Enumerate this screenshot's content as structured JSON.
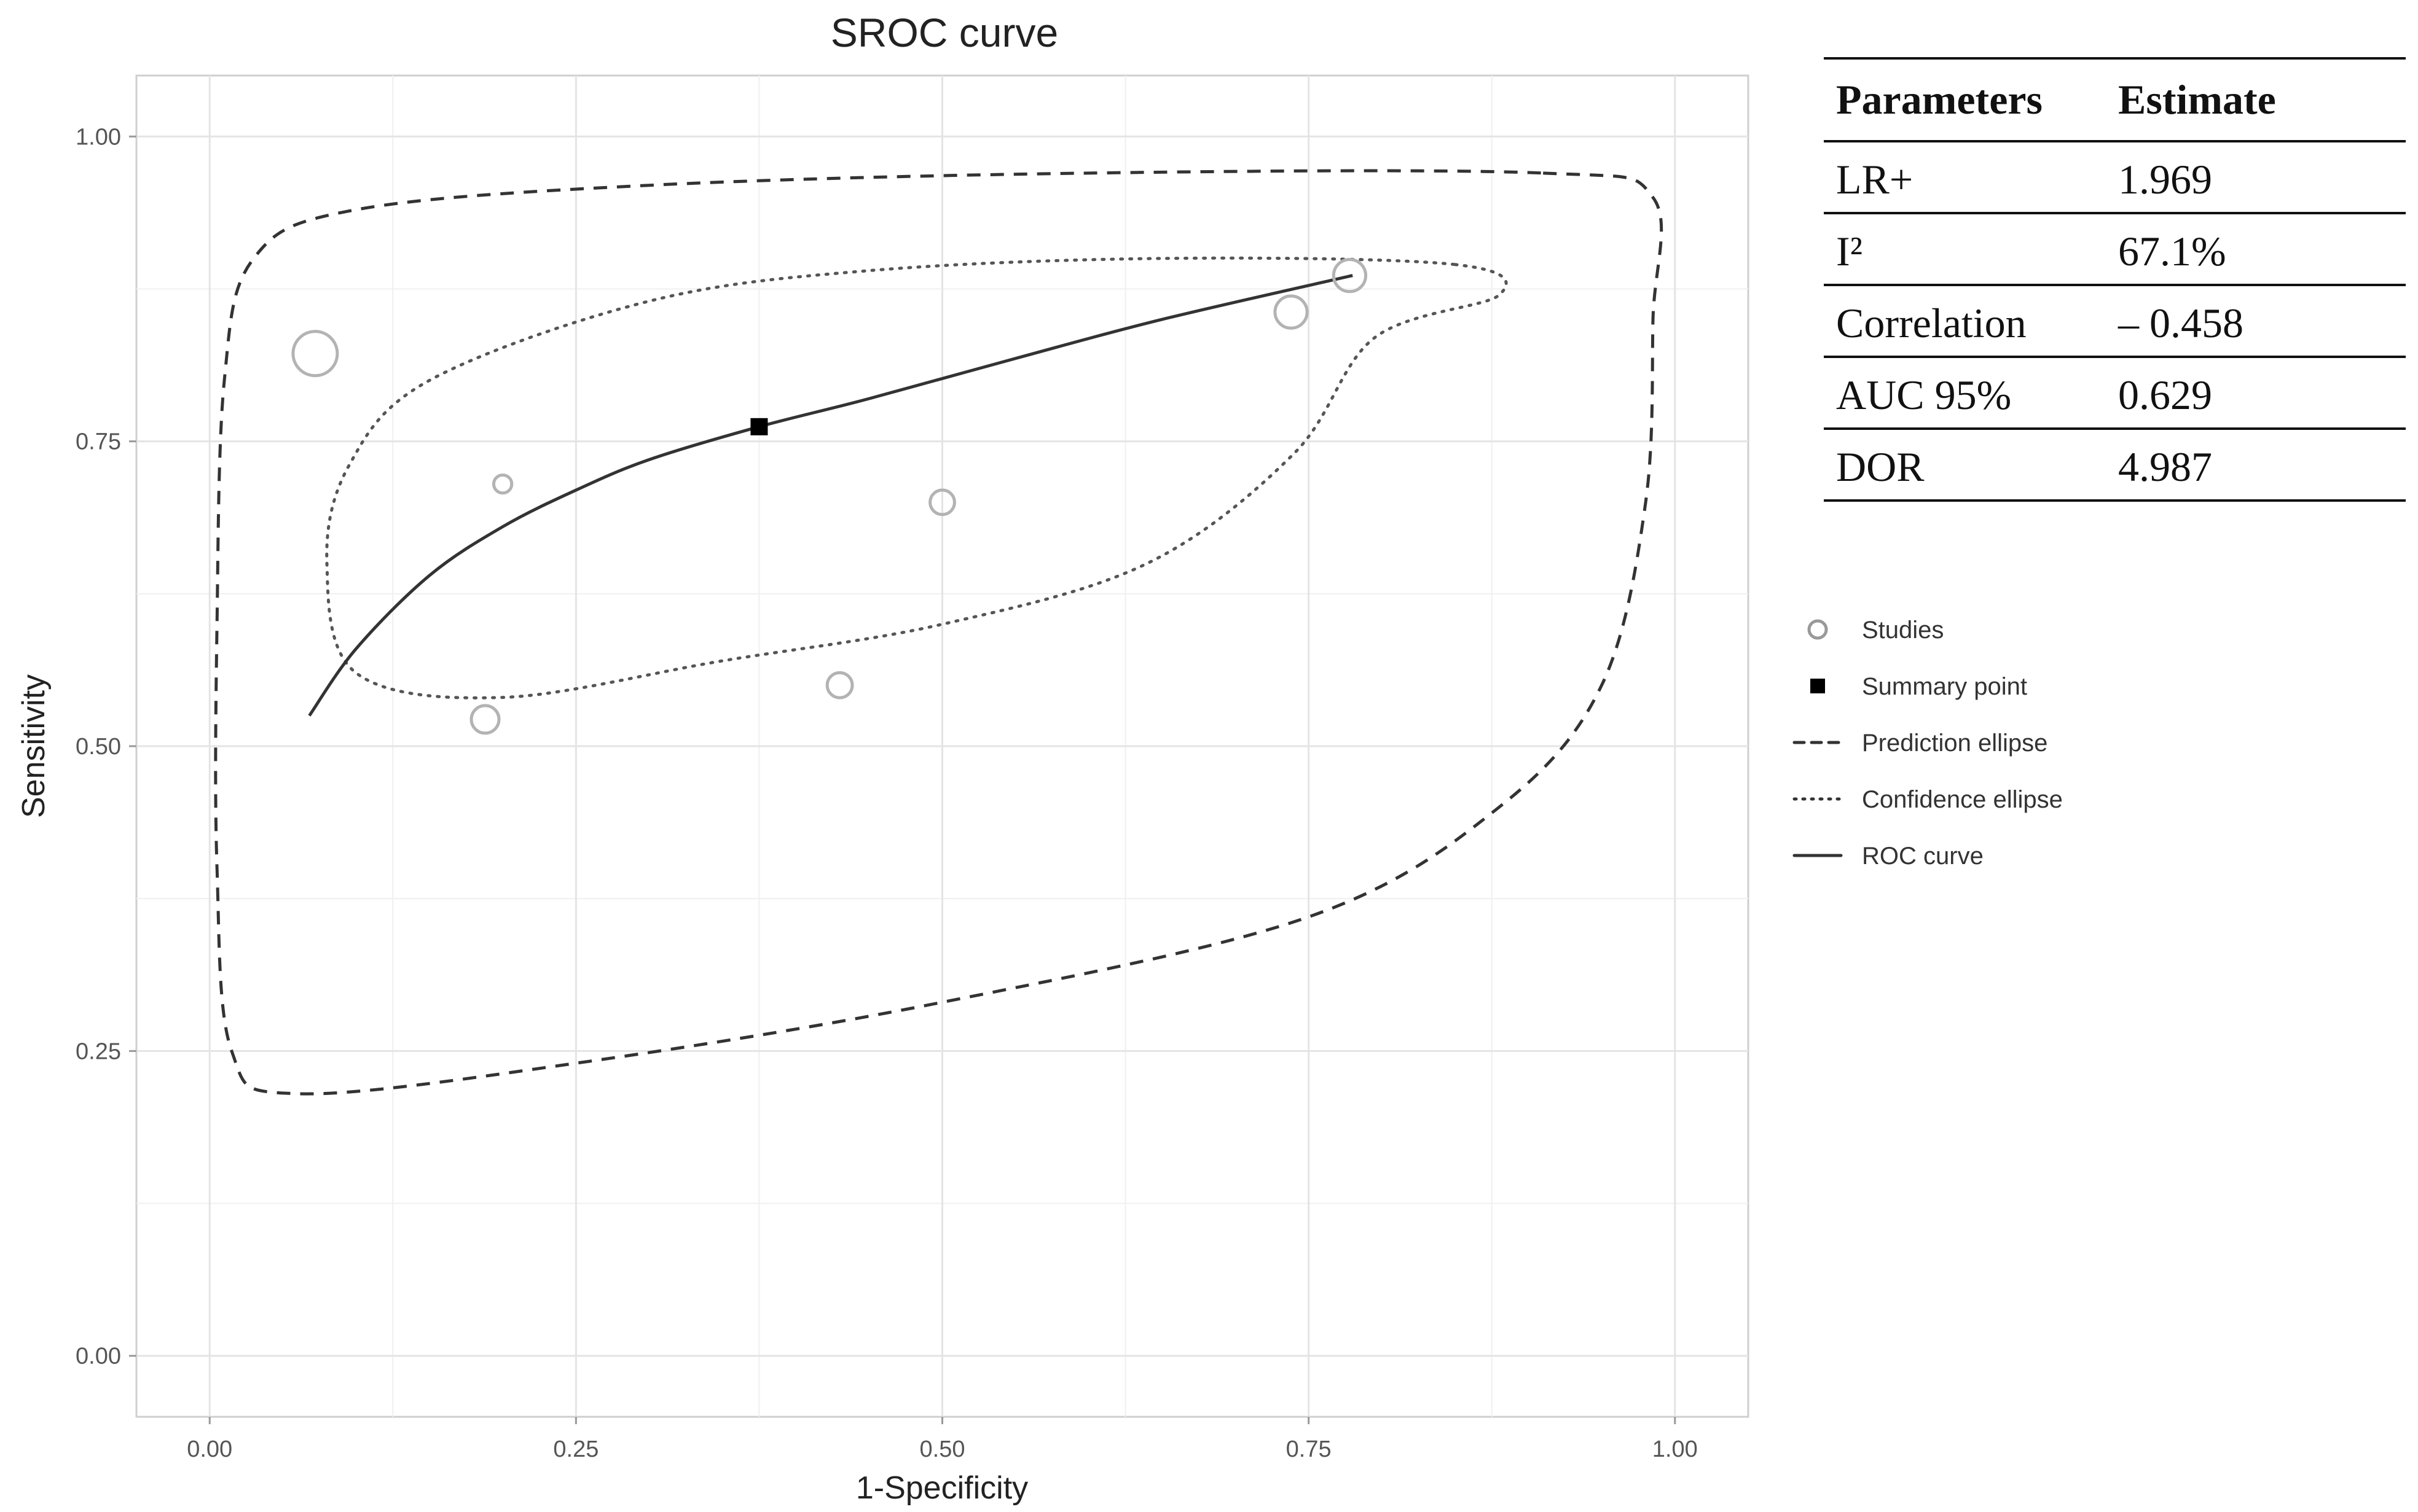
{
  "chart_data": {
    "type": "scatter",
    "title": "SROC curve",
    "xlabel": "1-Specificity",
    "ylabel": "Sensitivity",
    "xlim": [
      -0.05,
      1.05
    ],
    "ylim": [
      -0.05,
      1.05
    ],
    "x_ticks": [
      "0.00",
      "0.25",
      "0.50",
      "0.75",
      "1.00"
    ],
    "y_ticks": [
      "0.00",
      "0.25",
      "0.50",
      "0.75",
      "1.00"
    ],
    "grid": true,
    "studies": [
      {
        "x": 0.072,
        "y": 0.822,
        "weight": 1.0
      },
      {
        "x": 0.2,
        "y": 0.715,
        "weight": 0.18
      },
      {
        "x": 0.188,
        "y": 0.522,
        "weight": 0.48
      },
      {
        "x": 0.43,
        "y": 0.55,
        "weight": 0.4
      },
      {
        "x": 0.5,
        "y": 0.7,
        "weight": 0.38
      },
      {
        "x": 0.738,
        "y": 0.856,
        "weight": 0.62
      },
      {
        "x": 0.778,
        "y": 0.886,
        "weight": 0.62
      }
    ],
    "summary_point": {
      "x": 0.375,
      "y": 0.762
    },
    "roc_curve": [
      {
        "x": 0.068,
        "y": 0.525
      },
      {
        "x": 0.1,
        "y": 0.58
      },
      {
        "x": 0.15,
        "y": 0.64
      },
      {
        "x": 0.2,
        "y": 0.68
      },
      {
        "x": 0.25,
        "y": 0.71
      },
      {
        "x": 0.3,
        "y": 0.735
      },
      {
        "x": 0.375,
        "y": 0.762
      },
      {
        "x": 0.45,
        "y": 0.785
      },
      {
        "x": 0.55,
        "y": 0.818
      },
      {
        "x": 0.65,
        "y": 0.85
      },
      {
        "x": 0.78,
        "y": 0.886
      }
    ],
    "confidence_ellipse": [
      {
        "x": 0.85,
        "y": 0.895
      },
      {
        "x": 0.88,
        "y": 0.87
      },
      {
        "x": 0.795,
        "y": 0.835
      },
      {
        "x": 0.74,
        "y": 0.74
      },
      {
        "x": 0.64,
        "y": 0.65
      },
      {
        "x": 0.5,
        "y": 0.6
      },
      {
        "x": 0.35,
        "y": 0.57
      },
      {
        "x": 0.2,
        "y": 0.54
      },
      {
        "x": 0.1,
        "y": 0.56
      },
      {
        "x": 0.08,
        "y": 0.65
      },
      {
        "x": 0.095,
        "y": 0.73
      },
      {
        "x": 0.15,
        "y": 0.8
      },
      {
        "x": 0.3,
        "y": 0.865
      },
      {
        "x": 0.45,
        "y": 0.89
      },
      {
        "x": 0.65,
        "y": 0.9
      }
    ],
    "prediction_ellipse": [
      {
        "x": 0.91,
        "y": 0.97
      },
      {
        "x": 0.985,
        "y": 0.95
      },
      {
        "x": 0.985,
        "y": 0.85
      },
      {
        "x": 0.98,
        "y": 0.7
      },
      {
        "x": 0.95,
        "y": 0.55
      },
      {
        "x": 0.88,
        "y": 0.45
      },
      {
        "x": 0.75,
        "y": 0.36
      },
      {
        "x": 0.5,
        "y": 0.29
      },
      {
        "x": 0.25,
        "y": 0.24
      },
      {
        "x": 0.06,
        "y": 0.215
      },
      {
        "x": 0.015,
        "y": 0.25
      },
      {
        "x": 0.005,
        "y": 0.4
      },
      {
        "x": 0.005,
        "y": 0.6
      },
      {
        "x": 0.01,
        "y": 0.8
      },
      {
        "x": 0.03,
        "y": 0.9
      },
      {
        "x": 0.1,
        "y": 0.94
      },
      {
        "x": 0.3,
        "y": 0.96
      },
      {
        "x": 0.6,
        "y": 0.97
      }
    ],
    "legend": {
      "position": "right",
      "items": [
        {
          "label": "Studies",
          "kind": "circle"
        },
        {
          "label": "Summary point",
          "kind": "square"
        },
        {
          "label": "Prediction ellipse",
          "kind": "dashed"
        },
        {
          "label": "Confidence ellipse",
          "kind": "dotted"
        },
        {
          "label": "ROC curve",
          "kind": "solid"
        }
      ]
    }
  },
  "parameters_table": {
    "headers": [
      "Parameters",
      "Estimate"
    ],
    "rows": [
      [
        "LR+",
        "1.969"
      ],
      [
        "I²",
        "67.1%"
      ],
      [
        "Correlation",
        "– 0.458"
      ],
      [
        "AUC 95%",
        "0.629"
      ],
      [
        "DOR",
        "4.987"
      ]
    ]
  },
  "colors": {
    "grid": "#e4e4e4",
    "study_stroke": "#b3b3b3",
    "curve": "#333333",
    "summary": "#000000"
  }
}
